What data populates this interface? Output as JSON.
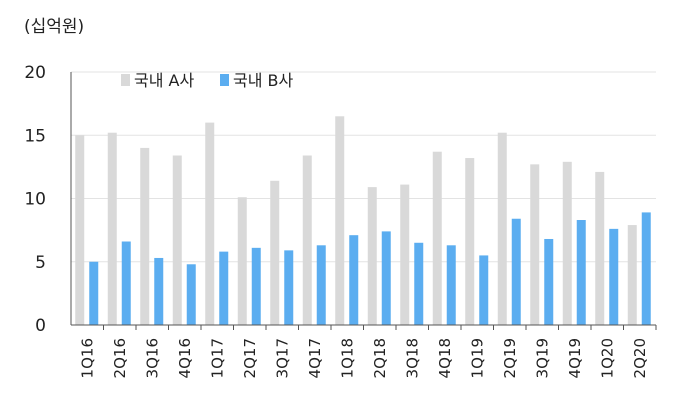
{
  "chart_data": {
    "type": "bar",
    "unit_label": "(십억원)",
    "categories": [
      "1Q16",
      "2Q16",
      "3Q16",
      "4Q16",
      "1Q17",
      "2Q17",
      "3Q17",
      "4Q17",
      "1Q18",
      "2Q18",
      "3Q18",
      "4Q18",
      "1Q19",
      "2Q19",
      "3Q19",
      "4Q19",
      "1Q20",
      "2Q20"
    ],
    "series": [
      {
        "name": "국내 A사",
        "color": "#d9d9d9",
        "values": [
          15.0,
          15.2,
          14.0,
          13.4,
          16.0,
          10.1,
          11.4,
          13.4,
          16.5,
          10.9,
          11.1,
          13.7,
          13.2,
          15.2,
          12.7,
          12.9,
          12.1,
          7.9
        ]
      },
      {
        "name": "국내 B사",
        "color": "#5badf0",
        "values": [
          5.0,
          6.6,
          5.3,
          4.8,
          5.8,
          6.1,
          5.9,
          6.3,
          7.1,
          7.4,
          6.5,
          6.3,
          5.5,
          8.4,
          6.8,
          8.3,
          7.6,
          8.9
        ]
      }
    ],
    "yticks": [
      0,
      5,
      10,
      15,
      20
    ],
    "ylim": [
      0,
      20
    ],
    "grid": true,
    "legend": "top-left"
  }
}
